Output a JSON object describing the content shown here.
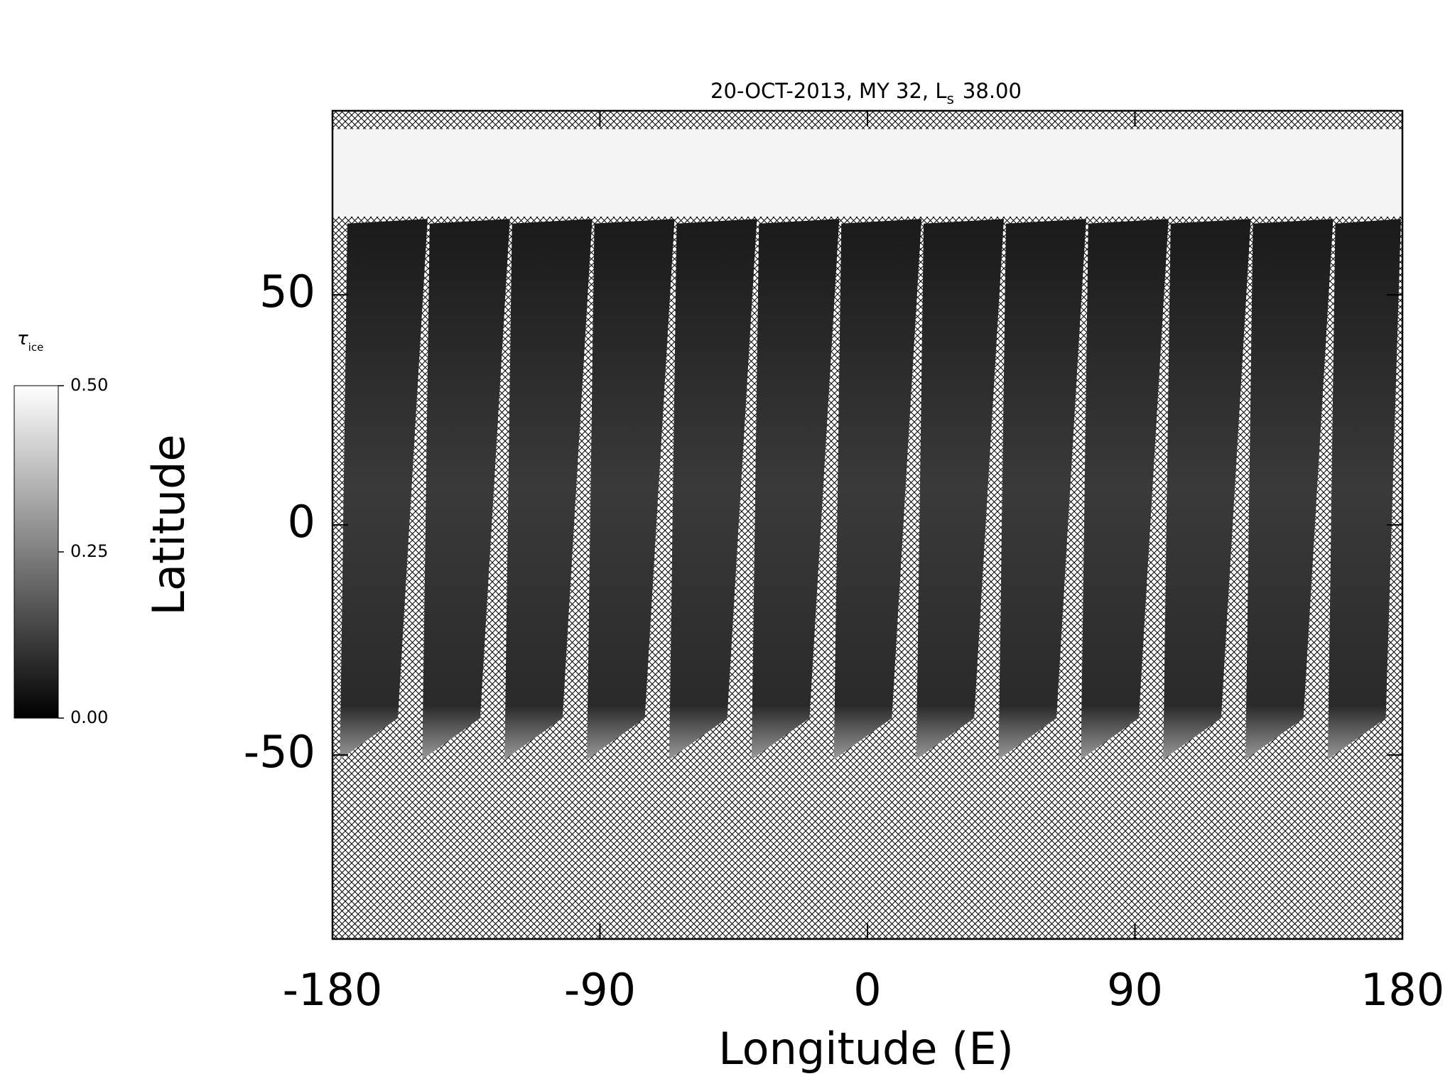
{
  "chart_data": {
    "type": "map",
    "title": "20-OCT-2013, MY 32,  L",
    "title_subscript": "s",
    "title_suffix": "38.00",
    "x_label": "Longitude (E)",
    "y_label": "Latitude",
    "xlim": [
      -180,
      180
    ],
    "xticks": [
      -180,
      -90,
      0,
      90,
      180
    ],
    "ylim": [
      -90,
      90
    ],
    "yticks": [
      -50,
      0,
      50
    ],
    "colorbar": {
      "label": "τ",
      "label_subscript": "ice",
      "lim": [
        0,
        0.5
      ],
      "ticks": [
        {
          "value": 0,
          "label": "0.00"
        },
        {
          "value": 0.25,
          "label": "0.25"
        },
        {
          "value": 0.5,
          "label": "0.50"
        }
      ],
      "colors": [
        "#000000",
        "#ffffff"
      ]
    }
  }
}
